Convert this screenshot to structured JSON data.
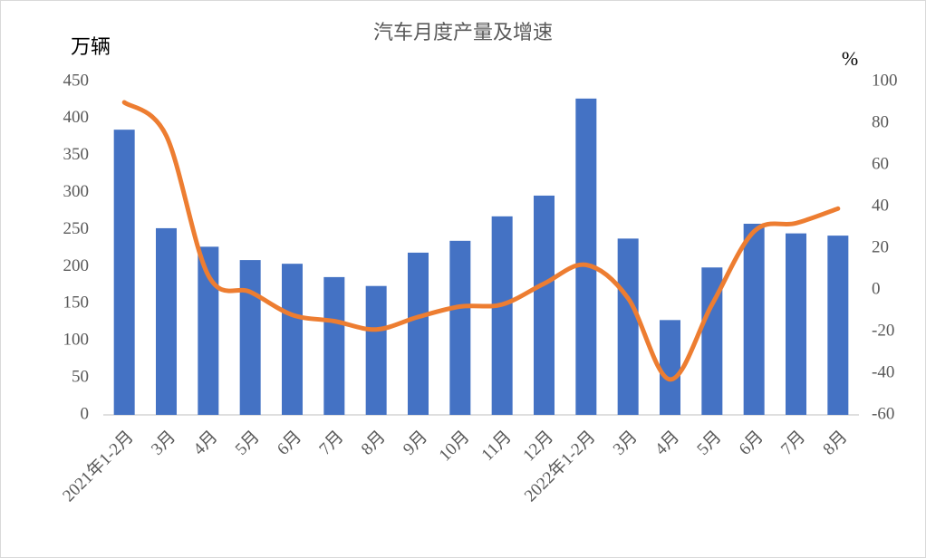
{
  "chart_data": {
    "type": "bar-line",
    "title": "汽车月度产量及增速",
    "y_label": "万辆",
    "y2_label": "%",
    "categories": [
      "2021年1-2月",
      "3月",
      "4月",
      "5月",
      "6月",
      "7月",
      "8月",
      "9月",
      "10月",
      "11月",
      "12月",
      "2022年1-2月",
      "3月",
      "4月",
      "5月",
      "6月",
      "7月",
      "8月"
    ],
    "series": [
      {
        "type": "bar",
        "color": "#4472c4",
        "values": [
          385,
          252,
          227,
          209,
          204,
          186,
          174,
          219,
          235,
          268,
          296,
          427,
          238,
          128,
          199,
          258,
          245,
          242
        ]
      },
      {
        "type": "line",
        "axis": "y2",
        "color": "#ed7d31",
        "values": [
          90,
          74,
          7,
          -1,
          -12,
          -15,
          -19,
          -13,
          -8,
          -7,
          3,
          12,
          -4,
          -43,
          -7,
          28,
          32,
          39
        ]
      }
    ],
    "ylim": [
      0,
      450
    ],
    "yticks": [
      0,
      50,
      100,
      150,
      200,
      250,
      300,
      350,
      400,
      450
    ],
    "y2lim": [
      -60,
      100
    ],
    "y2ticks": [
      -60,
      -40,
      -20,
      0,
      20,
      40,
      60,
      80,
      100
    ],
    "grid": false
  }
}
